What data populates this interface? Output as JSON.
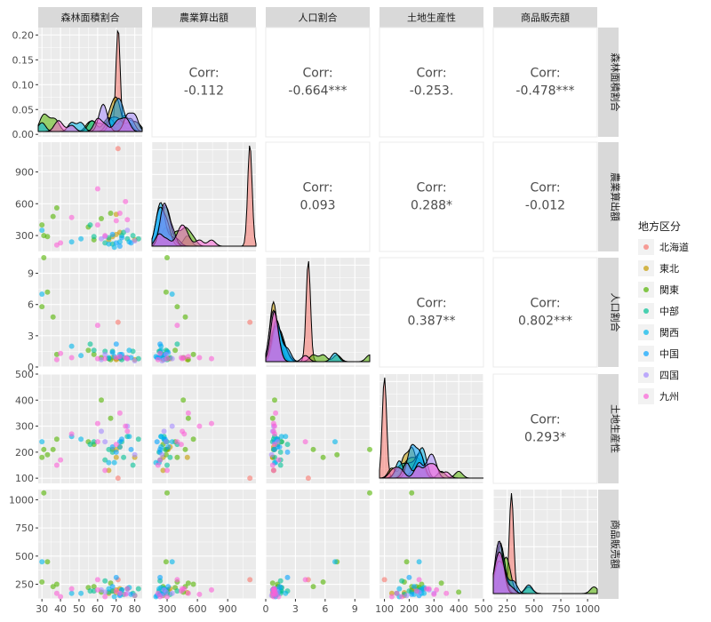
{
  "chart_data": {
    "type": "scatter",
    "title": "",
    "variables": [
      "森林面積割合",
      "農業算出額",
      "人口割合",
      "土地生産性",
      "商品販売額"
    ],
    "legend": {
      "title": "地方区分",
      "position": "right",
      "entries": [
        {
          "name": "北海道",
          "color": "#F8766D"
        },
        {
          "name": "東北",
          "color": "#C49A00"
        },
        {
          "name": "関東",
          "color": "#53B400"
        },
        {
          "name": "中部",
          "color": "#00C094"
        },
        {
          "name": "関西",
          "color": "#00B6EB"
        },
        {
          "name": "中国",
          "color": "#06A4FF"
        },
        {
          "name": "四国",
          "color": "#A58AFF"
        },
        {
          "name": "九州",
          "color": "#FB61D7"
        }
      ]
    },
    "axes": {
      "森林面積割合": {
        "range": [
          28,
          84
        ],
        "ticks": [
          30,
          40,
          50,
          60,
          70,
          80
        ],
        "y_ticks_density": [
          "0.00",
          "0.05",
          "0.10",
          "0.15",
          "0.20"
        ],
        "density_range": [
          -0.005,
          0.215
        ]
      },
      "農業算出額": {
        "range": [
          150,
          1180
        ],
        "ticks": [
          300,
          600,
          900
        ],
        "tick_labels": [
          "300",
          "600",
          "900"
        ]
      },
      "人口割合": {
        "range": [
          0,
          10.5
        ],
        "ticks": [
          0,
          3,
          6,
          9
        ]
      },
      "土地生産性": {
        "range": [
          80,
          500
        ],
        "ticks": [
          100,
          200,
          300,
          400,
          500
        ]
      },
      "商品販売額": {
        "range": [
          120,
          1090
        ],
        "ticks": [
          250,
          500,
          750,
          1000
        ],
        "tick_labels": [
          "250",
          "500",
          "750",
          "1000"
        ]
      }
    },
    "correlations": [
      {
        "row": 0,
        "col": 1,
        "label": "Corr:",
        "value": "-0.112"
      },
      {
        "row": 0,
        "col": 2,
        "label": "Corr:",
        "value": "-0.664***"
      },
      {
        "row": 0,
        "col": 3,
        "label": "Corr:",
        "value": "-0.253."
      },
      {
        "row": 0,
        "col": 4,
        "label": "Corr:",
        "value": "-0.478***"
      },
      {
        "row": 1,
        "col": 2,
        "label": "Corr:",
        "value": "0.093"
      },
      {
        "row": 1,
        "col": 3,
        "label": "Corr:",
        "value": "0.288*"
      },
      {
        "row": 1,
        "col": 4,
        "label": "Corr:",
        "value": "-0.012"
      },
      {
        "row": 2,
        "col": 3,
        "label": "Corr:",
        "value": "0.387**"
      },
      {
        "row": 2,
        "col": 4,
        "label": "Corr:",
        "value": "0.802***"
      },
      {
        "row": 3,
        "col": 4,
        "label": "Corr:",
        "value": "0.293*"
      }
    ],
    "points": [
      [
        71,
        1120,
        4.3,
        100,
        290,
        0
      ],
      [
        66,
        260,
        0.8,
        130,
        170,
        1
      ],
      [
        70,
        500,
        0.7,
        180,
        175,
        1
      ],
      [
        68,
        290,
        0.9,
        210,
        190,
        1
      ],
      [
        80,
        260,
        0.7,
        180,
        150,
        1
      ],
      [
        70,
        310,
        0.8,
        210,
        200,
        1
      ],
      [
        72,
        330,
        0.8,
        220,
        210,
        1
      ],
      [
        33,
        290,
        7.2,
        190,
        450,
        2
      ],
      [
        36,
        480,
        4.8,
        210,
        230,
        2
      ],
      [
        38,
        560,
        1.2,
        250,
        250,
        2
      ],
      [
        30,
        400,
        5.8,
        180,
        270,
        2
      ],
      [
        31,
        300,
        10.5,
        210,
        1060,
        2
      ],
      [
        55,
        380,
        1.6,
        240,
        220,
        2
      ],
      [
        58,
        260,
        1.2,
        230,
        230,
        2
      ],
      [
        67,
        510,
        0.7,
        330,
        260,
        2
      ],
      [
        62,
        460,
        0.9,
        400,
        180,
        2
      ],
      [
        64,
        230,
        1.5,
        170,
        280,
        3
      ],
      [
        58,
        290,
        1.6,
        240,
        190,
        3
      ],
      [
        79,
        300,
        1.5,
        150,
        170,
        3
      ],
      [
        76,
        270,
        0.9,
        260,
        210,
        3
      ],
      [
        66,
        280,
        0.8,
        210,
        180,
        3
      ],
      [
        73,
        300,
        0.7,
        240,
        200,
        3
      ],
      [
        82,
        270,
        0.8,
        250,
        210,
        3
      ],
      [
        68,
        220,
        1.5,
        200,
        190,
        3
      ],
      [
        74,
        330,
        0.9,
        180,
        160,
        3
      ],
      [
        56,
        400,
        2.2,
        230,
        190,
        3
      ],
      [
        30,
        350,
        7.0,
        240,
        450,
        4
      ],
      [
        51,
        270,
        1.1,
        250,
        170,
        4
      ],
      [
        46,
        240,
        2.0,
        260,
        170,
        4
      ],
      [
        66,
        220,
        0.9,
        160,
        210,
        4
      ],
      [
        77,
        240,
        1.6,
        260,
        220,
        4
      ],
      [
        69,
        190,
        1.0,
        160,
        140,
        4
      ],
      [
        72,
        240,
        1.2,
        220,
        160,
        4
      ],
      [
        68,
        310,
        1.4,
        220,
        230,
        5
      ],
      [
        73,
        280,
        1.2,
        250,
        200,
        5
      ],
      [
        78,
        230,
        0.9,
        210,
        160,
        5
      ],
      [
        72,
        200,
        0.9,
        240,
        150,
        5
      ],
      [
        70,
        230,
        2.2,
        200,
        310,
        5
      ],
      [
        64,
        290,
        1.2,
        240,
        180,
        6
      ],
      [
        76,
        350,
        0.8,
        300,
        170,
        6
      ],
      [
        80,
        250,
        0.6,
        190,
        150,
        6
      ],
      [
        62,
        270,
        0.7,
        280,
        200,
        6
      ],
      [
        46,
        470,
        0.9,
        270,
        210,
        7
      ],
      [
        60,
        740,
        0.8,
        310,
        200,
        7
      ],
      [
        75,
        620,
        0.9,
        300,
        160,
        7
      ],
      [
        70,
        440,
        0.9,
        230,
        190,
        7
      ],
      [
        76,
        450,
        0.8,
        280,
        210,
        7
      ],
      [
        72,
        510,
        1.0,
        350,
        170,
        7
      ],
      [
        60,
        400,
        4.0,
        240,
        290,
        7
      ],
      [
        64,
        300,
        0.8,
        130,
        140,
        7
      ],
      [
        40,
        230,
        1.3,
        170,
        140,
        7
      ],
      [
        38,
        210,
        0.7,
        150,
        170,
        7
      ]
    ],
    "notes": "ggpairs scatter matrix: lower=scatter, diagonal=density by region, upper=correlation"
  }
}
